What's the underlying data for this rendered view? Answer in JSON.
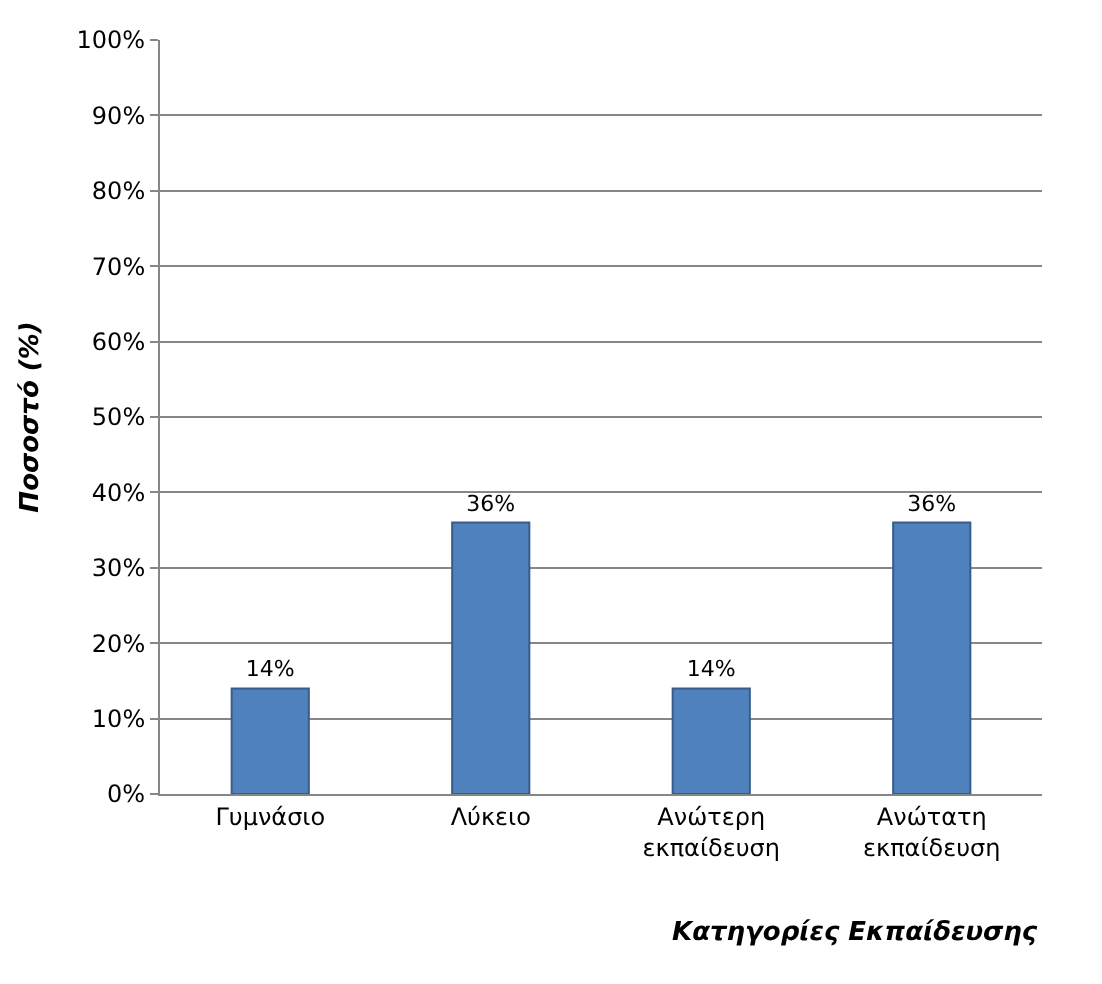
{
  "chart_data": {
    "type": "bar",
    "ylabel": "Ποσοστό (%)",
    "xlabel": "Κατηγορίες Εκπαίδευσης",
    "categories": [
      "Γυμνάσιο",
      "Λύκειο",
      "Ανώτερη εκπαίδευση",
      "Ανώτατη εκπαίδευση"
    ],
    "values": [
      14,
      36,
      14,
      36
    ],
    "value_labels": [
      "14%",
      "36%",
      "14%",
      "36%"
    ],
    "color": "#4f81bd",
    "ylim": [
      0,
      100
    ],
    "yticks": [
      {
        "value": 0,
        "label": "0%"
      },
      {
        "value": 10,
        "label": "10%"
      },
      {
        "value": 20,
        "label": "20%"
      },
      {
        "value": 30,
        "label": "30%"
      },
      {
        "value": 40,
        "label": "40%"
      },
      {
        "value": 50,
        "label": "50%"
      },
      {
        "value": 60,
        "label": "60%"
      },
      {
        "value": 70,
        "label": "70%"
      },
      {
        "value": 80,
        "label": "80%"
      },
      {
        "value": 90,
        "label": "90%"
      },
      {
        "value": 100,
        "label": "100%"
      }
    ],
    "grid": "y"
  }
}
